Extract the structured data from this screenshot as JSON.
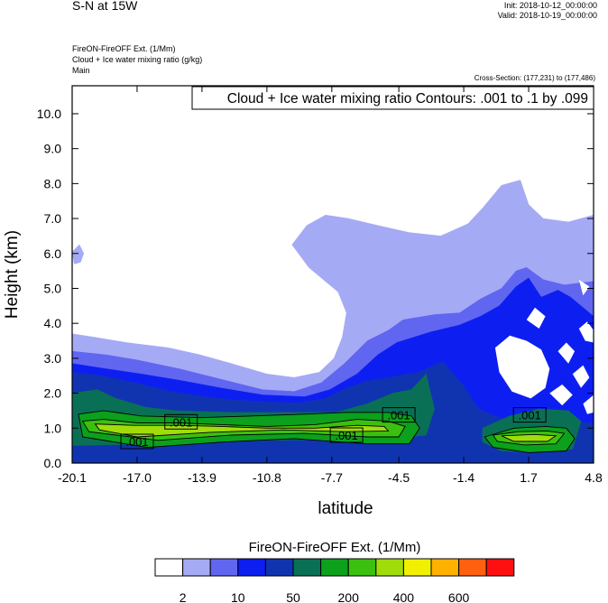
{
  "header": {
    "title": "S-N at 15W",
    "init": "Init: 2018-10-12_00:00:00",
    "valid": "Valid: 2018-10-19_00:00:00",
    "info_lines": [
      "FireON-FireOFF Ext.   (1/Mm)",
      "Cloud + Ice water mixing ratio   (g/kg)",
      "Main"
    ],
    "cross_section": "Cross-Section: (177,231) to (177,486)"
  },
  "chart_data": {
    "type": "heatmap",
    "title": "Cloud + Ice water mixing ratio Contours: .001 to .1 by .099",
    "xlabel": "latitude",
    "ylabel": "Height (km)",
    "xlim": [
      -20.1,
      4.8
    ],
    "ylim": [
      0,
      10.8
    ],
    "xticks": [
      "-20.1",
      "-17.0",
      "-13.9",
      "-10.8",
      "-7.7",
      "-4.5",
      "-1.4",
      "1.7",
      "4.8"
    ],
    "xtick_values": [
      -20.1,
      -17.0,
      -13.9,
      -10.8,
      -7.7,
      -4.5,
      -1.4,
      1.7,
      4.8
    ],
    "yticks": [
      "0.0",
      "1.0",
      "2.0",
      "3.0",
      "4.0",
      "5.0",
      "6.0",
      "7.0",
      "8.0",
      "9.0",
      "10.0"
    ],
    "ytick_values": [
      0,
      1,
      2,
      3,
      4,
      5,
      6,
      7,
      8,
      9,
      10
    ],
    "colorbar": {
      "title": "FireON-FireOFF Ext.  (1/Mm)",
      "labels": [
        "2",
        "10",
        "50",
        "200",
        "400",
        "600"
      ],
      "colors": [
        "#ffffff",
        "#a5aaf5",
        "#6066f0",
        "#0d1ff0",
        "#1034b0",
        "#0a7055",
        "#0ca01c",
        "#3cc010",
        "#a0dc0a",
        "#f0f000",
        "#ffb000",
        "#ff6010",
        "#ff1010"
      ]
    },
    "fill_regions": [
      {
        "level": 1,
        "points": [
          [
            -20.1,
            3.7
          ],
          [
            -19.0,
            3.6
          ],
          [
            -17.5,
            3.45
          ],
          [
            -15.5,
            3.3
          ],
          [
            -14.0,
            3.1
          ],
          [
            -12.5,
            2.85
          ],
          [
            -10.8,
            2.55
          ],
          [
            -9.5,
            2.45
          ],
          [
            -8.3,
            2.6
          ],
          [
            -7.6,
            3.0
          ],
          [
            -7.2,
            3.6
          ],
          [
            -7.0,
            4.3
          ],
          [
            -7.4,
            4.9
          ],
          [
            -8.8,
            5.6
          ],
          [
            -9.6,
            6.25
          ],
          [
            -8.9,
            6.8
          ],
          [
            -8.0,
            7.1
          ],
          [
            -6.9,
            7.0
          ],
          [
            -5.5,
            6.8
          ],
          [
            -4.0,
            6.6
          ],
          [
            -2.5,
            6.5
          ],
          [
            -1.2,
            6.85
          ],
          [
            -0.5,
            7.3
          ],
          [
            0.4,
            7.95
          ],
          [
            1.3,
            8.1
          ],
          [
            1.7,
            7.4
          ],
          [
            2.4,
            7.0
          ],
          [
            3.6,
            6.9
          ],
          [
            4.8,
            7.1
          ],
          [
            4.8,
            0
          ],
          [
            -20.1,
            0
          ]
        ]
      },
      {
        "level": 1,
        "points": [
          [
            -20.1,
            6.05
          ],
          [
            -19.75,
            6.25
          ],
          [
            -19.55,
            6.0
          ],
          [
            -19.7,
            5.75
          ],
          [
            -20.0,
            5.7
          ]
        ]
      },
      {
        "level": 2,
        "points": [
          [
            -20.1,
            3.2
          ],
          [
            -18.5,
            3.1
          ],
          [
            -17.0,
            2.95
          ],
          [
            -15.0,
            2.7
          ],
          [
            -13.0,
            2.4
          ],
          [
            -11.0,
            2.1
          ],
          [
            -9.5,
            2.05
          ],
          [
            -8.2,
            2.3
          ],
          [
            -7.1,
            2.85
          ],
          [
            -6.0,
            3.5
          ],
          [
            -5.0,
            3.8
          ],
          [
            -4.3,
            4.1
          ],
          [
            -2.8,
            4.25
          ],
          [
            -1.6,
            4.3
          ],
          [
            -0.6,
            4.7
          ],
          [
            0.4,
            5.0
          ],
          [
            1.1,
            5.5
          ],
          [
            1.6,
            5.6
          ],
          [
            2.4,
            5.25
          ],
          [
            3.4,
            5.1
          ],
          [
            4.8,
            5.2
          ],
          [
            4.8,
            0
          ],
          [
            -20.1,
            0
          ]
        ]
      },
      {
        "level": 3,
        "points": [
          [
            -20.1,
            2.85
          ],
          [
            -18.5,
            2.7
          ],
          [
            -16.8,
            2.55
          ],
          [
            -14.8,
            2.35
          ],
          [
            -13.0,
            2.15
          ],
          [
            -11.0,
            1.95
          ],
          [
            -9.0,
            1.9
          ],
          [
            -7.8,
            2.1
          ],
          [
            -6.5,
            2.55
          ],
          [
            -5.5,
            3.1
          ],
          [
            -4.6,
            3.45
          ],
          [
            -3.0,
            3.75
          ],
          [
            -1.6,
            3.95
          ],
          [
            -0.6,
            4.2
          ],
          [
            0.3,
            4.5
          ],
          [
            1.1,
            5.05
          ],
          [
            1.7,
            5.3
          ],
          [
            2.3,
            4.75
          ],
          [
            3.1,
            4.95
          ],
          [
            3.7,
            4.75
          ],
          [
            4.8,
            4.2
          ],
          [
            4.8,
            0
          ],
          [
            -20.1,
            0
          ]
        ]
      },
      {
        "level": 4,
        "points": [
          [
            -20.1,
            2.6
          ],
          [
            -18.7,
            2.5
          ],
          [
            -17.1,
            2.3
          ],
          [
            -15.4,
            2.05
          ],
          [
            -13.8,
            1.9
          ],
          [
            -12.2,
            1.8
          ],
          [
            -10.8,
            1.75
          ],
          [
            -9.3,
            1.72
          ],
          [
            -8.0,
            1.85
          ],
          [
            -7.0,
            2.15
          ],
          [
            -6.0,
            2.35
          ],
          [
            -5.0,
            2.45
          ],
          [
            -3.6,
            2.6
          ],
          [
            -2.4,
            2.9
          ],
          [
            -1.4,
            2.2
          ],
          [
            -0.7,
            1.55
          ],
          [
            0.3,
            1.3
          ],
          [
            1.5,
            1.25
          ],
          [
            3.0,
            1.2
          ],
          [
            4.8,
            1.15
          ],
          [
            4.8,
            0
          ],
          [
            -20.1,
            0
          ]
        ]
      },
      {
        "level": 5,
        "points": [
          [
            -20.1,
            2.0
          ],
          [
            -18.9,
            2.1
          ],
          [
            -18.0,
            1.85
          ],
          [
            -16.6,
            1.6
          ],
          [
            -15.2,
            1.5
          ],
          [
            -12.5,
            1.45
          ],
          [
            -10.0,
            1.45
          ],
          [
            -7.5,
            1.45
          ],
          [
            -6.0,
            1.7
          ],
          [
            -4.8,
            2.0
          ],
          [
            -3.9,
            2.1
          ],
          [
            -3.2,
            2.55
          ],
          [
            -2.8,
            1.55
          ],
          [
            -3.2,
            0.8
          ],
          [
            -5.0,
            0.7
          ],
          [
            -10.8,
            0.65
          ],
          [
            -16.0,
            0.55
          ],
          [
            -20.1,
            0.5
          ]
        ]
      },
      {
        "level": 5,
        "points": [
          [
            -0.5,
            1.0
          ],
          [
            0.8,
            1.35
          ],
          [
            2.2,
            1.55
          ],
          [
            3.6,
            1.5
          ],
          [
            4.2,
            1.2
          ],
          [
            3.8,
            0.4
          ],
          [
            2.0,
            0.3
          ],
          [
            0.4,
            0.35
          ],
          [
            -0.5,
            0.6
          ]
        ]
      },
      {
        "level": 6,
        "points": [
          [
            -19.8,
            1.4
          ],
          [
            -18.6,
            1.5
          ],
          [
            -16.8,
            1.35
          ],
          [
            -14.0,
            1.3
          ],
          [
            -11.5,
            1.35
          ],
          [
            -9.0,
            1.4
          ],
          [
            -7.0,
            1.45
          ],
          [
            -5.0,
            1.45
          ],
          [
            -3.9,
            1.35
          ],
          [
            -3.5,
            1.0
          ],
          [
            -4.0,
            0.55
          ],
          [
            -6.0,
            0.55
          ],
          [
            -9.5,
            0.7
          ],
          [
            -13.0,
            0.6
          ],
          [
            -16.5,
            0.45
          ],
          [
            -19.6,
            0.75
          ]
        ]
      },
      {
        "level": 6,
        "points": [
          [
            -0.4,
            0.75
          ],
          [
            1.0,
            1.0
          ],
          [
            2.5,
            1.05
          ],
          [
            3.5,
            1.0
          ],
          [
            3.9,
            0.7
          ],
          [
            3.5,
            0.35
          ],
          [
            1.7,
            0.3
          ],
          [
            0.0,
            0.45
          ]
        ]
      },
      {
        "level": 7,
        "points": [
          [
            -19.6,
            1.2
          ],
          [
            -18.6,
            1.25
          ],
          [
            -17.0,
            1.15
          ],
          [
            -15.0,
            1.15
          ],
          [
            -13.0,
            1.1
          ],
          [
            -10.8,
            1.05
          ],
          [
            -8.5,
            1.1
          ],
          [
            -6.5,
            1.25
          ],
          [
            -5.0,
            1.2
          ],
          [
            -4.2,
            1.05
          ],
          [
            -4.5,
            0.75
          ],
          [
            -6.0,
            0.75
          ],
          [
            -9.0,
            0.85
          ],
          [
            -12.5,
            0.8
          ],
          [
            -16.0,
            0.65
          ],
          [
            -19.3,
            0.9
          ]
        ]
      },
      {
        "level": 7,
        "points": [
          [
            0.0,
            0.8
          ],
          [
            1.2,
            0.9
          ],
          [
            2.6,
            0.92
          ],
          [
            3.4,
            0.85
          ],
          [
            3.0,
            0.55
          ],
          [
            1.5,
            0.52
          ],
          [
            0.2,
            0.62
          ]
        ]
      },
      {
        "level": 8,
        "points": [
          [
            -19.0,
            1.12
          ],
          [
            -17.2,
            1.08
          ],
          [
            -15.0,
            1.08
          ],
          [
            -13.0,
            1.05
          ],
          [
            -10.8,
            1.0
          ],
          [
            -8.5,
            1.0
          ],
          [
            -6.5,
            1.08
          ],
          [
            -5.2,
            1.05
          ],
          [
            -5.0,
            0.92
          ],
          [
            -7.0,
            0.9
          ],
          [
            -10.0,
            0.95
          ],
          [
            -13.5,
            0.88
          ],
          [
            -17.0,
            0.75
          ],
          [
            -18.8,
            0.95
          ]
        ]
      },
      {
        "level": 8,
        "points": [
          [
            0.4,
            0.78
          ],
          [
            2.0,
            0.82
          ],
          [
            3.0,
            0.78
          ],
          [
            2.6,
            0.62
          ],
          [
            1.0,
            0.62
          ]
        ]
      }
    ],
    "white_patches": [
      [
        [
          0.1,
          3.3
        ],
        [
          0.8,
          3.65
        ],
        [
          1.6,
          3.5
        ],
        [
          2.3,
          3.25
        ],
        [
          2.7,
          2.7
        ],
        [
          2.5,
          2.15
        ],
        [
          1.8,
          1.85
        ],
        [
          0.9,
          2.05
        ],
        [
          0.3,
          2.6
        ]
      ],
      [
        [
          1.6,
          4.1
        ],
        [
          2.0,
          4.45
        ],
        [
          2.5,
          4.2
        ],
        [
          2.2,
          3.85
        ]
      ],
      [
        [
          3.1,
          3.2
        ],
        [
          3.5,
          3.45
        ],
        [
          3.9,
          3.2
        ],
        [
          3.6,
          2.85
        ]
      ],
      [
        [
          3.8,
          2.55
        ],
        [
          4.3,
          2.8
        ],
        [
          4.6,
          2.45
        ],
        [
          4.2,
          2.15
        ]
      ],
      [
        [
          4.1,
          3.85
        ],
        [
          4.5,
          4.05
        ],
        [
          4.8,
          3.8
        ],
        [
          4.8,
          3.45
        ],
        [
          4.4,
          3.5
        ]
      ],
      [
        [
          2.7,
          2.0
        ],
        [
          3.3,
          2.25
        ],
        [
          3.8,
          1.95
        ],
        [
          3.3,
          1.65
        ]
      ],
      [
        [
          4.3,
          1.7
        ],
        [
          4.8,
          1.95
        ],
        [
          4.8,
          1.45
        ],
        [
          4.5,
          1.4
        ]
      ],
      [
        [
          4.1,
          5.25
        ],
        [
          4.6,
          5.05
        ],
        [
          4.3,
          4.8
        ]
      ]
    ],
    "contour_label_text": ".001",
    "contour_labels": [
      [
        -17.0,
        0.62
      ],
      [
        -14.9,
        1.18
      ],
      [
        -7.0,
        0.8
      ],
      [
        -4.5,
        1.38
      ],
      [
        1.75,
        1.38
      ]
    ]
  }
}
